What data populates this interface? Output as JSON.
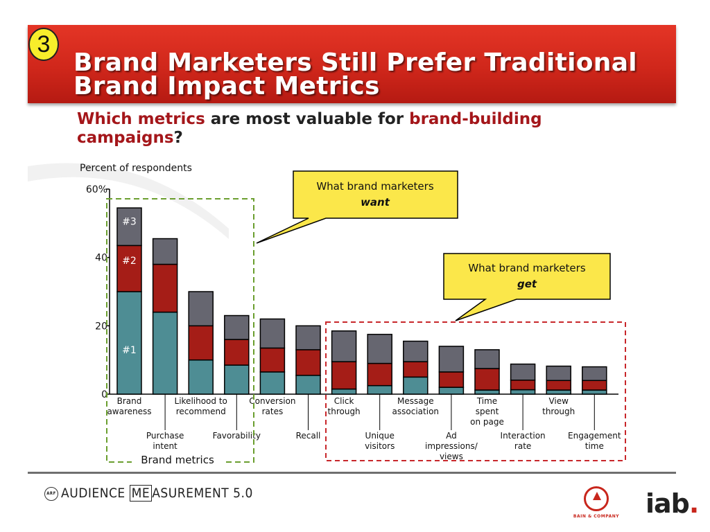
{
  "header": {
    "number": "3",
    "title_line1": "Brand Marketers Still Prefer Traditional",
    "title_line2": "Brand Impact Metrics"
  },
  "question": {
    "part1": "Which metrics",
    "part2": " are most valuable for ",
    "part3": "brand-building campaigns",
    "part4": "?"
  },
  "colors": {
    "rank1": "#4e8d94",
    "rank2": "#a51d17",
    "rank3": "#666670",
    "brand_box": "#6a9e2e",
    "get_box": "#c8262a",
    "callout": "#fbe74a"
  },
  "chart_data": {
    "type": "bar",
    "stacked": true,
    "ylabel": "Percent of respondents",
    "ylim": [
      0,
      60
    ],
    "yticks": [
      "0",
      "20",
      "40",
      "60%"
    ],
    "categories": [
      "Brand awareness",
      "Purchase intent",
      "Likelihood to recommend",
      "Favorability",
      "Conversion rates",
      "Recall",
      "Click through",
      "Unique visitors",
      "Message association",
      "Ad impressions/ views",
      "Time spent on page",
      "Interaction rate",
      "View through",
      "Engagement time"
    ],
    "category_labels": [
      [
        "Brand",
        "awareness"
      ],
      [
        "Purchase",
        "intent"
      ],
      [
        "Likelihood to",
        "recommend"
      ],
      [
        "Favorability"
      ],
      [
        "Conversion",
        "rates"
      ],
      [
        "Recall"
      ],
      [
        "Click",
        "through"
      ],
      [
        "Unique",
        "visitors"
      ],
      [
        "Message",
        "association"
      ],
      [
        "Ad",
        "impressions/",
        "views"
      ],
      [
        "Time",
        "spent",
        "on page"
      ],
      [
        "Interaction",
        "rate"
      ],
      [
        "View",
        "through"
      ],
      [
        "Engagement",
        "time"
      ]
    ],
    "series": [
      {
        "name": "#1",
        "values": [
          30,
          24,
          10,
          8.5,
          6.5,
          5.5,
          1.5,
          2.5,
          5,
          2,
          1.2,
          1.3,
          1.2,
          1.2
        ]
      },
      {
        "name": "#2",
        "values": [
          13.5,
          14,
          10,
          7.5,
          7,
          7.5,
          8,
          6.5,
          4.5,
          4.5,
          6.3,
          2.8,
          2.8,
          2.8
        ]
      },
      {
        "name": "#3",
        "values": [
          11,
          7.5,
          10,
          7,
          8.5,
          7,
          9,
          8.5,
          6,
          7.5,
          5.5,
          4.7,
          4.2,
          4
        ]
      }
    ],
    "series_labels": [
      "#3",
      "#2",
      "#1"
    ],
    "group_brand_label": "Brand metrics",
    "callout_want": {
      "line1": "What brand marketers",
      "line2": "want"
    },
    "callout_get": {
      "line1": "What brand marketers",
      "line2": "get"
    }
  },
  "footer": {
    "arf": "ARF",
    "logo_part1": "AUDIENCE ",
    "logo_part2": "ME",
    "logo_part3": "ASUREMENT 5.0",
    "bain": "BAIN & COMPANY",
    "iab": "iab",
    "iab_dot": "."
  }
}
